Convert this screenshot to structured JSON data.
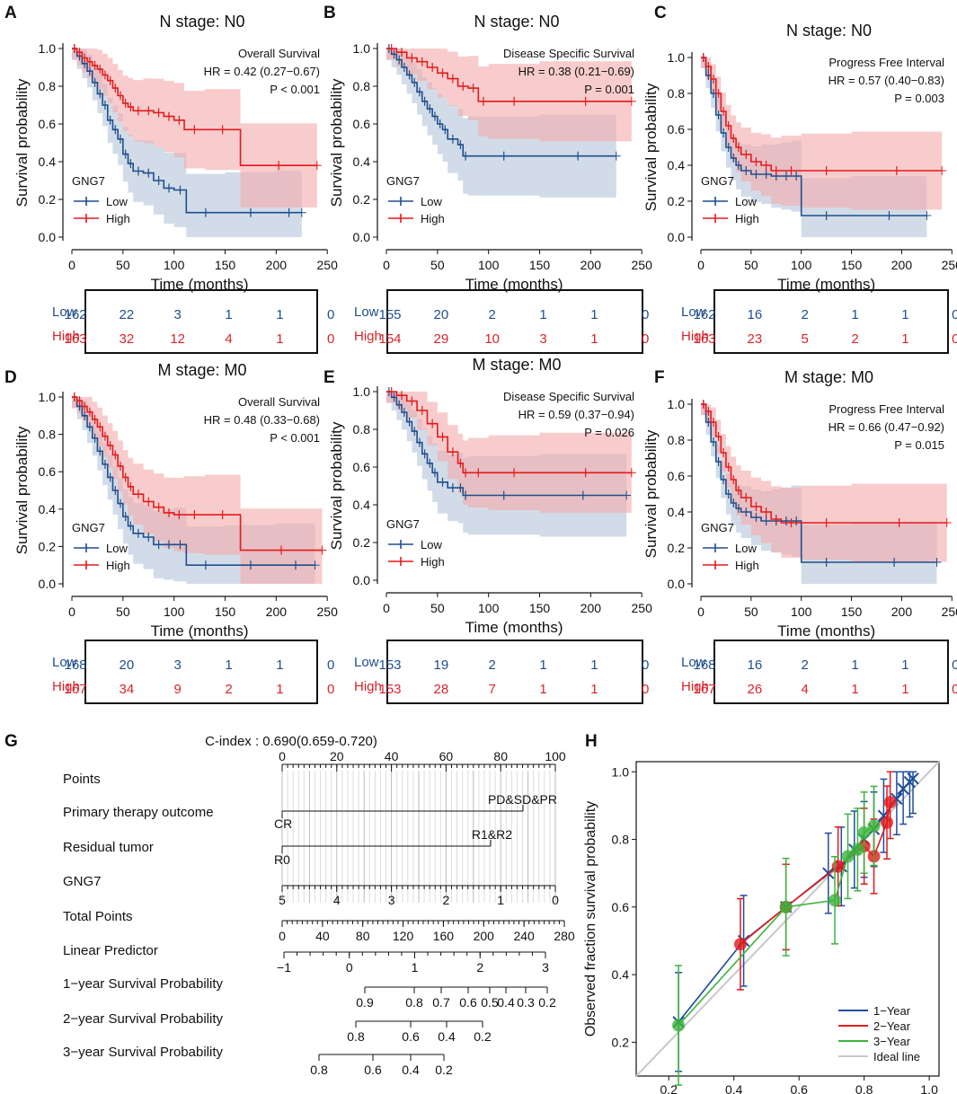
{
  "colors": {
    "low": "#1f4e8c",
    "high": "#e31a1c",
    "low_band": "#b3c4d9",
    "high_band": "#f4aaaa",
    "one_year": "#1f4e9c",
    "two_year": "#e31a1c",
    "three_year": "#3cb43c",
    "ideal": "#c8c8c8"
  },
  "common": {
    "xlabel": "Time (months)",
    "ylabel": "Survival probability",
    "legend_title": "GNG7",
    "legend_low": "Low",
    "legend_high": "High",
    "risk_low": "Low",
    "risk_high": "High",
    "xticks": [
      "0",
      "50",
      "100",
      "150",
      "200",
      "250"
    ],
    "yticks": [
      "0.0",
      "0.2",
      "0.4",
      "0.6",
      "0.8",
      "1.0"
    ]
  },
  "chart_data": [
    {
      "id": "A",
      "type": "line",
      "title": "N stage: N0",
      "endpoint": "Overall Survival",
      "hr": "HR = 0.42 (0.27−0.67)",
      "p": "P < 0.001",
      "xlim": [
        0,
        250
      ],
      "ylim": [
        0,
        1
      ],
      "series": [
        {
          "name": "Low",
          "x": [
            0,
            5,
            10,
            15,
            20,
            25,
            30,
            35,
            40,
            45,
            50,
            55,
            60,
            70,
            80,
            90,
            100,
            112,
            150,
            200,
            225
          ],
          "y": [
            1.0,
            0.96,
            0.92,
            0.88,
            0.82,
            0.76,
            0.7,
            0.62,
            0.57,
            0.52,
            0.44,
            0.39,
            0.35,
            0.34,
            0.3,
            0.26,
            0.25,
            0.13,
            0.13,
            0.13,
            0.13
          ]
        },
        {
          "name": "High",
          "x": [
            0,
            5,
            10,
            15,
            20,
            25,
            30,
            35,
            40,
            45,
            50,
            55,
            60,
            70,
            80,
            90,
            100,
            110,
            130,
            165,
            240
          ],
          "y": [
            1.0,
            0.98,
            0.95,
            0.93,
            0.91,
            0.89,
            0.86,
            0.83,
            0.79,
            0.75,
            0.71,
            0.69,
            0.67,
            0.67,
            0.66,
            0.64,
            0.62,
            0.57,
            0.57,
            0.38,
            0.38
          ]
        }
      ],
      "risk": {
        "low": [
          "162",
          "22",
          "3",
          "1",
          "1",
          "0"
        ],
        "high": [
          "163",
          "32",
          "12",
          "4",
          "1",
          "0"
        ]
      }
    },
    {
      "id": "B",
      "type": "line",
      "title": "N stage: N0",
      "endpoint": "Disease Specific Survival",
      "hr": "HR = 0.38 (0.21−0.69)",
      "p": "P = 0.001",
      "xlim": [
        0,
        250
      ],
      "ylim": [
        0,
        1
      ],
      "series": [
        {
          "name": "Low",
          "x": [
            0,
            5,
            10,
            15,
            20,
            25,
            30,
            35,
            40,
            45,
            50,
            55,
            60,
            70,
            75,
            80,
            150,
            225
          ],
          "y": [
            1.0,
            0.97,
            0.94,
            0.9,
            0.86,
            0.82,
            0.77,
            0.72,
            0.68,
            0.64,
            0.6,
            0.57,
            0.52,
            0.49,
            0.43,
            0.43,
            0.43,
            0.43
          ]
        },
        {
          "name": "High",
          "x": [
            0,
            10,
            20,
            30,
            40,
            50,
            60,
            70,
            80,
            90,
            100,
            150,
            240
          ],
          "y": [
            1.0,
            0.98,
            0.95,
            0.93,
            0.9,
            0.87,
            0.84,
            0.8,
            0.79,
            0.72,
            0.72,
            0.72,
            0.72
          ]
        }
      ],
      "risk": {
        "low": [
          "155",
          "20",
          "2",
          "1",
          "1",
          "0"
        ],
        "high": [
          "154",
          "29",
          "10",
          "3",
          "1",
          "0"
        ]
      }
    },
    {
      "id": "C",
      "type": "line",
      "title": "N stage: N0",
      "endpoint": "Progress Free Interval",
      "hr": "HR = 0.57 (0.40−0.83)",
      "p": "P = 0.003",
      "xlim": [
        0,
        250
      ],
      "ylim": [
        0,
        1
      ],
      "series": [
        {
          "name": "Low",
          "x": [
            0,
            5,
            10,
            15,
            20,
            25,
            30,
            35,
            40,
            50,
            60,
            70,
            80,
            90,
            100,
            150,
            225
          ],
          "y": [
            1.0,
            0.9,
            0.8,
            0.68,
            0.58,
            0.5,
            0.44,
            0.4,
            0.37,
            0.35,
            0.35,
            0.34,
            0.34,
            0.34,
            0.12,
            0.12,
            0.12
          ]
        },
        {
          "name": "High",
          "x": [
            0,
            5,
            10,
            15,
            20,
            25,
            30,
            35,
            40,
            50,
            60,
            70,
            80,
            100,
            150,
            240
          ],
          "y": [
            1.0,
            0.95,
            0.88,
            0.8,
            0.7,
            0.62,
            0.55,
            0.5,
            0.46,
            0.42,
            0.4,
            0.37,
            0.37,
            0.37,
            0.37,
            0.37
          ]
        }
      ],
      "risk": {
        "low": [
          "162",
          "16",
          "2",
          "1",
          "1",
          "0"
        ],
        "high": [
          "163",
          "23",
          "5",
          "2",
          "1",
          "0"
        ]
      }
    },
    {
      "id": "D",
      "type": "line",
      "title": "M stage: M0",
      "endpoint": "Overall Survival",
      "hr": "HR = 0.48 (0.33−0.68)",
      "p": "P < 0.001",
      "xlim": [
        0,
        250
      ],
      "ylim": [
        0,
        1
      ],
      "series": [
        {
          "name": "Low",
          "x": [
            0,
            5,
            10,
            15,
            20,
            25,
            30,
            35,
            40,
            45,
            50,
            55,
            60,
            70,
            80,
            90,
            100,
            112,
            150,
            200,
            238
          ],
          "y": [
            1.0,
            0.95,
            0.9,
            0.84,
            0.78,
            0.71,
            0.64,
            0.57,
            0.5,
            0.43,
            0.36,
            0.31,
            0.27,
            0.25,
            0.21,
            0.21,
            0.21,
            0.1,
            0.1,
            0.1,
            0.1
          ]
        },
        {
          "name": "High",
          "x": [
            0,
            5,
            10,
            15,
            20,
            25,
            30,
            35,
            40,
            45,
            50,
            55,
            60,
            70,
            80,
            90,
            100,
            110,
            130,
            165,
            245
          ],
          "y": [
            1.0,
            0.98,
            0.95,
            0.92,
            0.88,
            0.84,
            0.79,
            0.74,
            0.69,
            0.63,
            0.57,
            0.52,
            0.48,
            0.44,
            0.41,
            0.38,
            0.37,
            0.37,
            0.37,
            0.18,
            0.18
          ]
        }
      ],
      "risk": {
        "low": [
          "168",
          "20",
          "3",
          "1",
          "1",
          "0"
        ],
        "high": [
          "167",
          "34",
          "9",
          "2",
          "1",
          "0"
        ]
      }
    },
    {
      "id": "E",
      "type": "line",
      "title": "M stage: M0",
      "endpoint": "Disease Specific Survival",
      "hr": "HR = 0.59 (0.37−0.94)",
      "p": "P = 0.026",
      "xlim": [
        0,
        250
      ],
      "ylim": [
        0,
        1
      ],
      "series": [
        {
          "name": "Low",
          "x": [
            0,
            5,
            10,
            15,
            20,
            25,
            30,
            35,
            40,
            45,
            50,
            60,
            70,
            75,
            80,
            150,
            235
          ],
          "y": [
            1.0,
            0.97,
            0.93,
            0.89,
            0.84,
            0.79,
            0.73,
            0.67,
            0.62,
            0.57,
            0.52,
            0.49,
            0.49,
            0.45,
            0.45,
            0.45,
            0.45
          ]
        },
        {
          "name": "High",
          "x": [
            0,
            10,
            20,
            30,
            40,
            50,
            60,
            70,
            75,
            80,
            100,
            150,
            240
          ],
          "y": [
            1.0,
            0.98,
            0.95,
            0.9,
            0.83,
            0.76,
            0.68,
            0.62,
            0.57,
            0.57,
            0.57,
            0.57,
            0.57
          ]
        }
      ],
      "risk": {
        "low": [
          "153",
          "19",
          "2",
          "1",
          "1",
          "0"
        ],
        "high": [
          "153",
          "28",
          "7",
          "1",
          "1",
          "0"
        ]
      }
    },
    {
      "id": "F",
      "type": "line",
      "title": "M stage: M0",
      "endpoint": "Progress Free Interval",
      "hr": "HR = 0.66 (0.47−0.92)",
      "p": "P = 0.015",
      "xlim": [
        0,
        250
      ],
      "ylim": [
        0,
        1
      ],
      "series": [
        {
          "name": "Low",
          "x": [
            0,
            5,
            10,
            15,
            20,
            25,
            30,
            35,
            40,
            50,
            60,
            70,
            80,
            90,
            100,
            150,
            235
          ],
          "y": [
            1.0,
            0.9,
            0.79,
            0.68,
            0.58,
            0.5,
            0.45,
            0.42,
            0.4,
            0.37,
            0.35,
            0.35,
            0.35,
            0.35,
            0.12,
            0.12,
            0.12
          ]
        },
        {
          "name": "High",
          "x": [
            0,
            5,
            10,
            15,
            20,
            25,
            30,
            35,
            40,
            50,
            60,
            70,
            80,
            100,
            150,
            245
          ],
          "y": [
            1.0,
            0.96,
            0.9,
            0.82,
            0.73,
            0.65,
            0.58,
            0.52,
            0.48,
            0.43,
            0.4,
            0.36,
            0.34,
            0.34,
            0.34,
            0.34
          ]
        }
      ],
      "risk": {
        "low": [
          "168",
          "16",
          "2",
          "1",
          "1",
          "0"
        ],
        "high": [
          "167",
          "26",
          "4",
          "1",
          "1",
          "0"
        ]
      }
    },
    {
      "id": "G",
      "type": "table",
      "title": "C-index : 0.690(0.659-0.720)",
      "rows": [
        {
          "label": "Points",
          "ticks": [
            "0",
            "20",
            "40",
            "60",
            "80",
            "100"
          ]
        },
        {
          "label": "Primary therapy outcome",
          "left": "CR",
          "right": "PD&SD&PR"
        },
        {
          "label": "Residual tumor",
          "left": "R0",
          "right": "R1&R2"
        },
        {
          "label": "GNG7",
          "ticks": [
            "5",
            "4",
            "3",
            "2",
            "1",
            "0"
          ]
        },
        {
          "label": "Total Points",
          "ticks": [
            "0",
            "40",
            "80",
            "120",
            "160",
            "200",
            "240",
            "280"
          ]
        },
        {
          "label": "Linear Predictor",
          "ticks": [
            "−1",
            "0",
            "1",
            "2",
            "3"
          ]
        },
        {
          "label": "1−year Survival Probability",
          "ticks": [
            "0.9",
            "0.8",
            "0.7",
            "0.6",
            "0.5",
            "0.4",
            "0.3",
            "0.2"
          ]
        },
        {
          "label": "2−year Survival Probability",
          "ticks": [
            "0.8",
            "0.6",
            "0.4",
            "0.2"
          ]
        },
        {
          "label": "3−year Survival Probability",
          "ticks": [
            "0.8",
            "0.6",
            "0.4",
            "0.2"
          ]
        }
      ]
    },
    {
      "id": "H",
      "type": "scatter",
      "xlabel": "",
      "ylabel": "Observed fraction survival probability",
      "xlim": [
        0.1,
        1.03
      ],
      "ylim": [
        0.1,
        1.03
      ],
      "xticks": [
        "0.2",
        "0.4",
        "0.6",
        "0.8",
        "1.0"
      ],
      "yticks": [
        "0.2",
        "0.4",
        "0.6",
        "0.8",
        "1.0"
      ],
      "legend": [
        "1−Year",
        "2−Year",
        "3−Year",
        "Ideal line"
      ],
      "series": [
        {
          "name": "1-Year",
          "x": [
            0.23,
            0.43,
            0.56,
            0.69,
            0.73,
            0.77,
            0.8,
            0.83,
            0.86,
            0.9,
            0.92,
            0.94,
            0.95
          ],
          "y": [
            0.26,
            0.5,
            0.6,
            0.7,
            0.72,
            0.77,
            0.8,
            0.83,
            0.87,
            0.92,
            0.95,
            0.97,
            0.98
          ]
        },
        {
          "name": "2-Year",
          "x": [
            0.42,
            0.56,
            0.72,
            0.8,
            0.83,
            0.87,
            0.88
          ],
          "y": [
            0.49,
            0.6,
            0.72,
            0.78,
            0.75,
            0.85,
            0.91
          ]
        },
        {
          "name": "3-Year",
          "x": [
            0.23,
            0.56,
            0.71,
            0.75,
            0.78,
            0.8,
            0.83
          ],
          "y": [
            0.25,
            0.6,
            0.62,
            0.75,
            0.77,
            0.82,
            0.84
          ]
        }
      ]
    }
  ]
}
